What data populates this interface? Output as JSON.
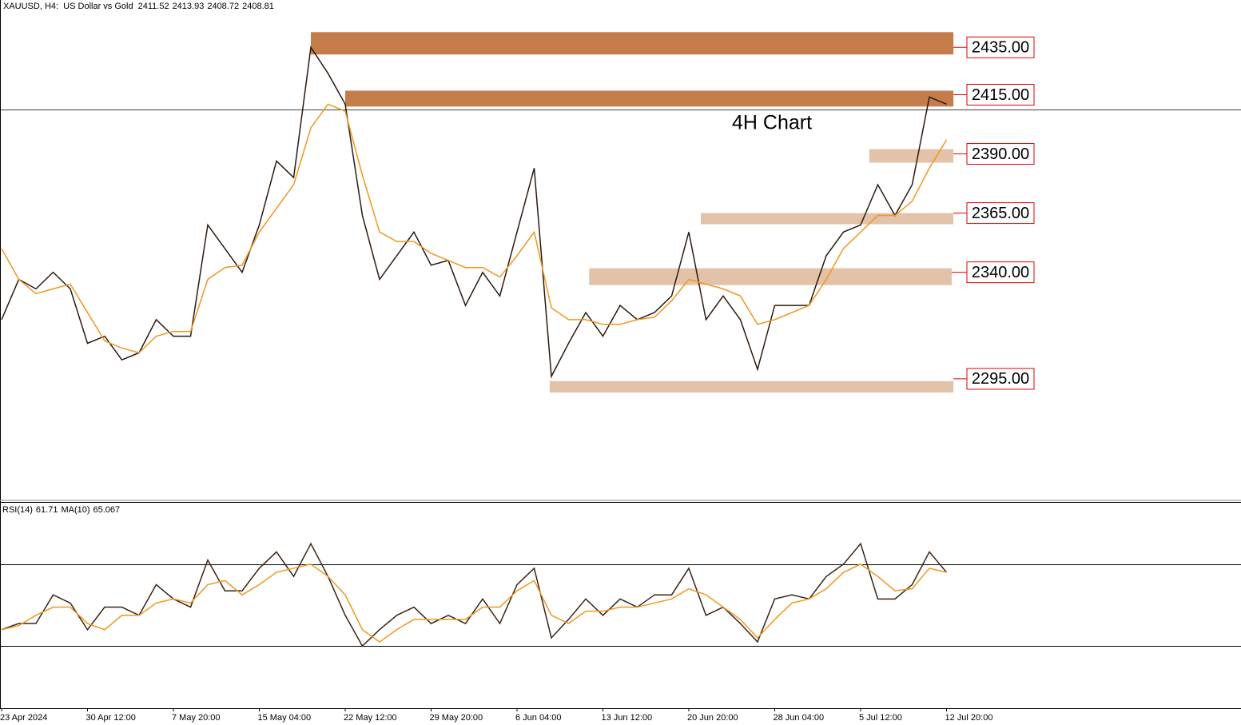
{
  "chart_data": [
    {
      "type": "line",
      "title": "XAUUSD, H4:  US Dollar vs Gold",
      "ohlc": [
        2411.52,
        2413.93,
        2408.72,
        2408.81
      ],
      "annotation": "4H Chart",
      "ylim": [
        2244,
        2455
      ],
      "series": [
        {
          "name": "Close",
          "color": "#2b1a0f",
          "values": [
            2320,
            2337,
            2333,
            2340,
            2333,
            2310,
            2313,
            2303,
            2306,
            2320,
            2313,
            2313,
            2360,
            2350,
            2340,
            2360,
            2387,
            2380,
            2435,
            2424,
            2411,
            2364,
            2337,
            2347,
            2357,
            2343,
            2345,
            2326,
            2340,
            2330,
            2357,
            2384,
            2296,
            2310,
            2323,
            2313,
            2326,
            2320,
            2323,
            2330,
            2357,
            2320,
            2330,
            2320,
            2299,
            2326,
            2326,
            2326,
            2347,
            2357,
            2360,
            2377,
            2364,
            2377,
            2414,
            2411
          ]
        },
        {
          "name": "MA",
          "color": "#f0961e",
          "values": [
            2350,
            2337,
            2331,
            2333,
            2335,
            2323,
            2311,
            2308,
            2306,
            2313,
            2315,
            2315,
            2337,
            2342,
            2343,
            2357,
            2367,
            2377,
            2401,
            2411,
            2408,
            2381,
            2357,
            2353,
            2353,
            2348,
            2345,
            2342,
            2342,
            2338,
            2347,
            2357,
            2325,
            2320,
            2320,
            2318,
            2318,
            2320,
            2321,
            2328,
            2337,
            2335,
            2333,
            2330,
            2318,
            2320,
            2323,
            2326,
            2337,
            2350,
            2357,
            2364,
            2364,
            2370,
            2384,
            2396
          ]
        }
      ],
      "zones": [
        {
          "label": "2435.00",
          "value": 2435,
          "low": 2432,
          "high": 2441.4,
          "start": 18,
          "end": 55.4,
          "color": "#c47c4a"
        },
        {
          "label": "2415.00",
          "value": 2415,
          "low": 2410,
          "high": 2416.7,
          "start": 20,
          "end": 55.4,
          "color": "#c47c4a"
        },
        {
          "label": "2390.00",
          "value": 2390,
          "low": 2386.3,
          "high": 2392,
          "start": 50.5,
          "end": 55.4,
          "color": "#e2c2a8"
        },
        {
          "label": "2365.00",
          "value": 2365,
          "low": 2360.3,
          "high": 2365,
          "start": 40.7,
          "end": 55.4,
          "color": "#e2c2a8"
        },
        {
          "label": "2340.00",
          "value": 2340,
          "low": 2334.6,
          "high": 2341.7,
          "start": 34.2,
          "end": 55.3,
          "color": "#e2c2a8"
        },
        {
          "label": "2295.00",
          "value": 2295,
          "low": 2289.2,
          "high": 2294,
          "start": 31.9,
          "end": 55.4,
          "color": "#e2c2a8"
        }
      ]
    },
    {
      "type": "line",
      "title": "RSI(14)",
      "value": 61.71,
      "ma_label": "MA(10)",
      "ma_value": 65.067,
      "ylim": [
        0,
        100
      ],
      "levels": [
        70,
        30
      ],
      "categories": [
        "23 Apr 2024",
        null,
        null,
        null,
        null,
        "30 Apr 12:00",
        null,
        null,
        null,
        null,
        "7 May 20:00",
        null,
        null,
        null,
        null,
        "15 May 04:00",
        null,
        null,
        null,
        null,
        "22 May 12:00",
        null,
        null,
        null,
        null,
        "29 May 20:00",
        null,
        null,
        null,
        null,
        "6 Jun 04:00",
        null,
        null,
        null,
        null,
        "13 Jun 12:00",
        null,
        null,
        null,
        null,
        "20 Jun 20:00",
        null,
        null,
        null,
        null,
        "28 Jun 04:00",
        null,
        null,
        null,
        null,
        "5 Jul 12:00",
        null,
        null,
        null,
        null,
        "12 Jul 20:00"
      ],
      "series": [
        {
          "name": "RSI",
          "color": "#3b2314",
          "values": [
            38,
            41,
            41,
            55,
            51,
            38,
            49,
            49,
            45,
            60,
            53,
            49,
            72,
            57,
            57,
            68,
            76,
            64,
            80,
            64,
            45,
            30,
            38,
            45,
            49,
            41,
            45,
            41,
            53,
            41,
            60,
            68,
            34,
            43,
            53,
            45,
            53,
            49,
            55,
            55,
            68,
            45,
            49,
            41,
            32,
            53,
            55,
            53,
            64,
            70,
            80,
            53,
            53,
            60,
            76,
            66
          ]
        },
        {
          "name": "RSI MA",
          "color": "#f0961e",
          "values": [
            38,
            40,
            45,
            49,
            49,
            41,
            38,
            45,
            45,
            51,
            53,
            51,
            60,
            62,
            55,
            60,
            66,
            68,
            70,
            64,
            55,
            38,
            32,
            38,
            43,
            43,
            43,
            43,
            49,
            49,
            57,
            62,
            45,
            41,
            47,
            47,
            49,
            49,
            51,
            53,
            58,
            55,
            49,
            43,
            34,
            43,
            51,
            53,
            58,
            66,
            70,
            64,
            57,
            58,
            68,
            66
          ]
        }
      ]
    }
  ]
}
